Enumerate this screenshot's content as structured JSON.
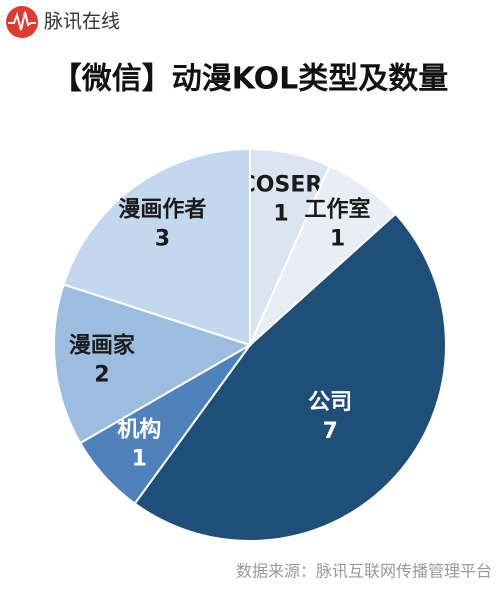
{
  "brand": "脉讯在线",
  "chart_data": {
    "type": "pie",
    "title": "【微信】动漫KOL类型及数量",
    "categories": [
      "COSER",
      "工作室",
      "公司",
      "机构",
      "漫画家",
      "漫画作者"
    ],
    "values": [
      1,
      1,
      7,
      1,
      2,
      3
    ],
    "colors": [
      "#dbe5f1",
      "#e8eef6",
      "#1f4e79",
      "#4f81bd",
      "#9dbde0",
      "#c3d7ed"
    ],
    "source": "数据来源：脉讯互联网传播管理平台"
  }
}
